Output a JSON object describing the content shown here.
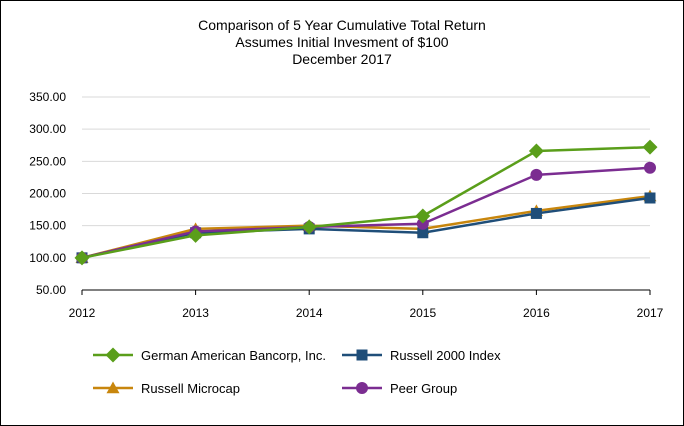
{
  "chart_data": {
    "type": "line",
    "title_lines": [
      "Comparison of 5 Year Cumulative Total Return",
      "Assumes Initial Invesment of $100",
      "December 2017"
    ],
    "xlabel": "",
    "ylabel": "",
    "x": [
      "2012",
      "2013",
      "2014",
      "2015",
      "2016",
      "2017"
    ],
    "ylim": [
      50,
      350
    ],
    "yticks": [
      "50.00",
      "100.00",
      "150.00",
      "200.00",
      "250.00",
      "300.00",
      "350.00"
    ],
    "grid": "horizontal",
    "legend_position": "bottom",
    "series": [
      {
        "name": "German American Bancorp, Inc.",
        "color": "#5a9e1a",
        "marker": "diamond",
        "values": [
          100,
          135,
          148,
          165,
          266,
          272
        ]
      },
      {
        "name": "Russell 2000 Index",
        "color": "#1f4e79",
        "marker": "square",
        "values": [
          100,
          139,
          145,
          139,
          169,
          193
        ]
      },
      {
        "name": "Russell Microcap",
        "color": "#c8860d",
        "marker": "triangle",
        "values": [
          100,
          145,
          150,
          145,
          173,
          196
        ]
      },
      {
        "name": "Peer Group",
        "color": "#7b2d91",
        "marker": "circle",
        "values": [
          100,
          141,
          148,
          153,
          229,
          240
        ]
      }
    ]
  }
}
